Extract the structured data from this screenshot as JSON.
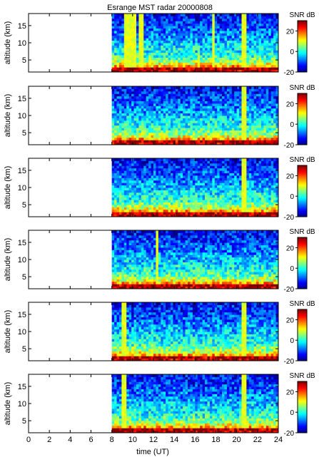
{
  "title": "Esrange MST radar 20000808",
  "colors": {
    "colormap": [
      "#000080",
      "#0000ff",
      "#0080ff",
      "#00ffff",
      "#80ff80",
      "#ffff00",
      "#ff8000",
      "#ff0000",
      "#800000"
    ],
    "axis": "#000000",
    "background": "#ffffff"
  },
  "chart_data": {
    "type": "heatmap",
    "panel_count": 6,
    "x_axis": {
      "label": "time (UT)",
      "range": [
        0,
        24
      ],
      "ticks": [
        "0",
        "2",
        "4",
        "6",
        "8",
        "10",
        "12",
        "14",
        "16",
        "18",
        "20",
        "22",
        "24"
      ],
      "data_start": 8
    },
    "y_axis": {
      "label": "altitude (km)",
      "range": [
        1.5,
        18.5
      ],
      "ticks": [
        "5",
        "10",
        "15"
      ]
    },
    "colorbar": {
      "label": "SNR dB",
      "range": [
        -20,
        30
      ],
      "ticks": [
        "20",
        "0",
        "-20"
      ]
    },
    "panels": [
      {
        "name": "panel-1",
        "bright_columns": [
          9.4,
          9.9,
          10.3,
          10.7,
          11.0,
          17.8,
          20.7
        ]
      },
      {
        "name": "panel-2",
        "bright_columns": [
          20.7
        ]
      },
      {
        "name": "panel-3",
        "bright_columns": [
          20.7
        ]
      },
      {
        "name": "panel-4",
        "bright_columns": [
          12.3
        ]
      },
      {
        "name": "panel-5",
        "bright_columns": [
          9.2,
          20.7
        ]
      },
      {
        "name": "panel-6",
        "bright_columns": [
          9.2,
          20.7
        ]
      }
    ]
  }
}
